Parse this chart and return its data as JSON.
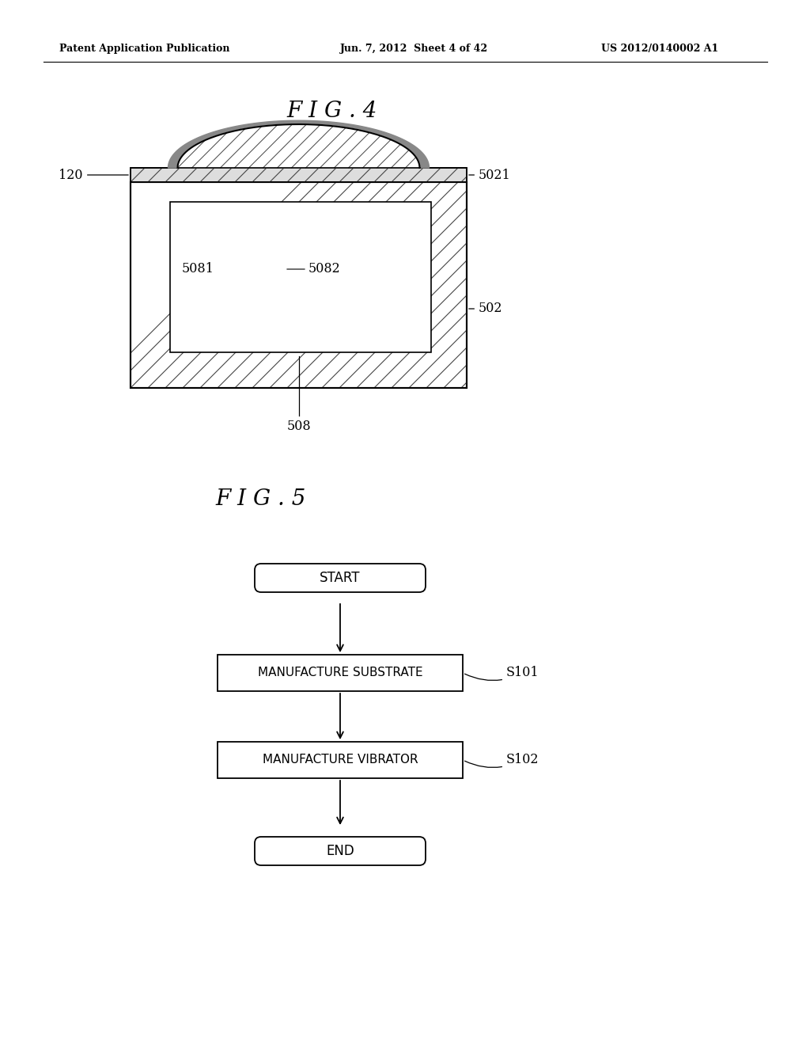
{
  "bg_color": "#ffffff",
  "header_left": "Patent Application Publication",
  "header_mid": "Jun. 7, 2012  Sheet 4 of 42",
  "header_right": "US 2012/0140002 A1",
  "fig4_title": "F I G . 4",
  "fig5_title": "F I G . 5"
}
